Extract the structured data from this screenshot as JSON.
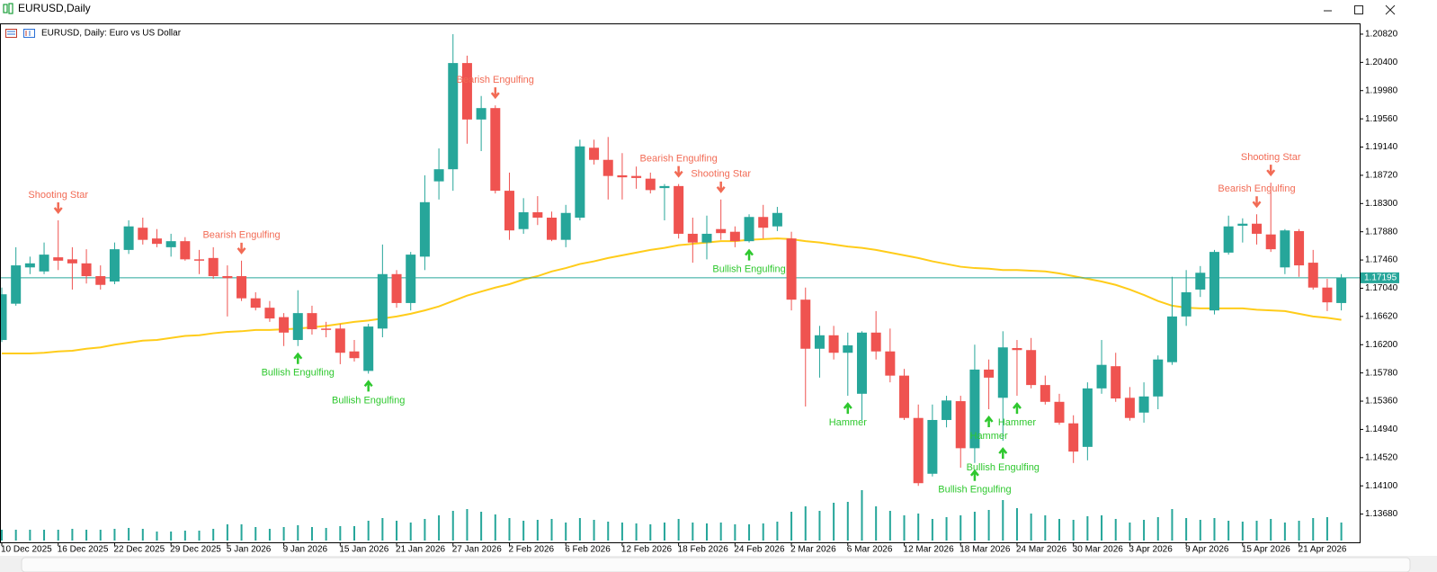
{
  "window": {
    "title": "EURUSD,Daily"
  },
  "chart_data": {
    "type": "candlestick",
    "title": "EURUSD, Daily: Euro vs US Dollar",
    "categories": [
      "10 Dec 2025",
      null,
      null,
      null,
      "16 Dec 2025",
      null,
      null,
      null,
      "22 Dec 2025",
      null,
      null,
      null,
      "29 Dec 2025",
      null,
      null,
      null,
      "5 Jan 2026",
      null,
      null,
      null,
      "9 Jan 2026",
      null,
      null,
      null,
      "15 Jan 2026",
      null,
      null,
      null,
      "21 Jan 2026",
      null,
      null,
      null,
      "27 Jan 2026",
      null,
      null,
      null,
      "2 Feb 2026",
      null,
      null,
      null,
      "6 Feb 2026",
      null,
      null,
      null,
      "12 Feb 2026",
      null,
      null,
      null,
      "18 Feb 2026",
      null,
      null,
      null,
      "24 Feb 2026",
      null,
      null,
      null,
      "2 Mar 2026",
      null,
      null,
      null,
      "6 Mar 2026",
      null,
      null,
      null,
      "12 Mar 2026",
      null,
      null,
      null,
      "18 Mar 2026",
      null,
      null,
      null,
      "24 Mar 2026",
      null,
      null,
      null,
      "30 Mar 2026",
      null,
      null,
      null,
      "3 Apr 2026",
      null,
      null,
      null,
      "9 Apr 2026",
      null,
      null,
      null,
      "15 Apr 2026",
      null,
      null,
      null,
      "21 Apr 2026",
      null,
      null,
      null
    ],
    "open": [
      1.1627,
      1.1681,
      1.1735,
      1.1729,
      1.175,
      1.1747,
      1.1741,
      1.1722,
      1.1714,
      1.1761,
      1.1794,
      1.1778,
      1.1765,
      1.1774,
      1.1747,
      1.1749,
      1.1722,
      1.1722,
      1.1689,
      1.1675,
      1.1661,
      1.1627,
      1.1667,
      1.1644,
      1.1644,
      1.161,
      1.1581,
      1.1644,
      1.1725,
      1.1682,
      1.1751,
      1.1863,
      1.1881,
      1.2039,
      1.1955,
      1.1972,
      1.1849,
      1.1792,
      1.1817,
      1.1809,
      1.1776,
      1.1809,
      1.1913,
      1.1895,
      1.1872,
      1.1871,
      1.1867,
      1.1853,
      1.1856,
      1.1785,
      1.1772,
      1.1792,
      1.1788,
      1.1774,
      1.181,
      1.1796,
      1.1778,
      1.1687,
      1.1614,
      1.1634,
      1.1608,
      1.1547,
      1.1638,
      1.161,
      1.1574,
      1.1511,
      1.1428,
      1.1508,
      1.1536,
      1.1466,
      1.1583,
      1.1541,
      1.1615,
      1.1612,
      1.156,
      1.1535,
      1.1503,
      1.1468,
      1.1555,
      1.1588,
      1.1541,
      1.1519,
      1.1543,
      1.1594,
      1.1662,
      1.1702,
      1.1671,
      1.1757,
      1.1797,
      1.18,
      1.1784,
      1.1735,
      1.1789,
      1.1742,
      1.1705,
      1.1682
    ],
    "high": [
      1.1705,
      1.1765,
      1.1751,
      1.1772,
      1.1805,
      1.1765,
      1.1762,
      1.1738,
      1.1772,
      1.1805,
      1.1809,
      1.1792,
      1.1785,
      1.178,
      1.1761,
      1.1765,
      1.1738,
      1.1745,
      1.1698,
      1.1685,
      1.1667,
      1.1701,
      1.1678,
      1.1654,
      1.1651,
      1.1627,
      1.1651,
      1.1769,
      1.1731,
      1.1758,
      1.1872,
      1.1912,
      1.2082,
      1.205,
      1.199,
      1.1976,
      1.1876,
      1.1838,
      1.1841,
      1.1818,
      1.1828,
      1.1925,
      1.1925,
      1.1929,
      1.1905,
      1.1885,
      1.1876,
      1.1859,
      1.1859,
      1.1809,
      1.1812,
      1.1836,
      1.1796,
      1.1814,
      1.1828,
      1.1825,
      1.1788,
      1.1705,
      1.1648,
      1.1648,
      1.1638,
      1.164,
      1.167,
      1.1644,
      1.1584,
      1.1531,
      1.1531,
      1.1544,
      1.1544,
      1.162,
      1.1598,
      1.164,
      1.1627,
      1.163,
      1.1574,
      1.1547,
      1.1515,
      1.1564,
      1.1627,
      1.1608,
      1.1557,
      1.1564,
      1.1604,
      1.1721,
      1.1731,
      1.1737,
      1.1761,
      1.1812,
      1.1808,
      1.1814,
      1.1861,
      1.1792,
      1.1792,
      1.1761,
      1.1718,
      1.1725
    ],
    "low": [
      1.1624,
      1.1678,
      1.1725,
      1.1725,
      1.1731,
      1.1702,
      1.1711,
      1.1702,
      1.171,
      1.1755,
      1.1769,
      1.1765,
      1.1751,
      1.1745,
      1.1725,
      1.1718,
      1.1662,
      1.1685,
      1.1671,
      1.1654,
      1.1618,
      1.1618,
      1.1635,
      1.1631,
      1.1591,
      1.1595,
      1.1577,
      1.1631,
      1.1675,
      1.1671,
      1.1731,
      1.1836,
      1.1849,
      1.1919,
      1.1908,
      1.1845,
      1.1776,
      1.1785,
      1.1798,
      1.1774,
      1.1765,
      1.1805,
      1.1888,
      1.1836,
      1.1836,
      1.1852,
      1.1845,
      1.1805,
      1.1778,
      1.1742,
      1.1747,
      1.1776,
      1.1765,
      1.1772,
      1.1778,
      1.1789,
      1.1671,
      1.1528,
      1.1571,
      1.1598,
      1.1544,
      1.1508,
      1.1598,
      1.1564,
      1.1508,
      1.141,
      1.1424,
      1.1497,
      1.1437,
      1.1444,
      1.1524,
      1.1477,
      1.1544,
      1.1555,
      1.1531,
      1.1501,
      1.1444,
      1.1448,
      1.1547,
      1.1535,
      1.1507,
      1.1504,
      1.1524,
      1.159,
      1.1648,
      1.1691,
      1.1665,
      1.1754,
      1.1772,
      1.1769,
      1.1758,
      1.1725,
      1.1721,
      1.1702,
      1.167,
      1.1671
    ],
    "close": [
      1.1695,
      1.1738,
      1.1741,
      1.1754,
      1.1745,
      1.1741,
      1.1722,
      1.1709,
      1.1762,
      1.1796,
      1.1776,
      1.177,
      1.1774,
      1.1747,
      1.1746,
      1.1722,
      1.1719,
      1.1689,
      1.1675,
      1.1659,
      1.1638,
      1.1667,
      1.1643,
      1.1642,
      1.1608,
      1.16,
      1.1647,
      1.1725,
      1.1682,
      1.1754,
      1.1832,
      1.1881,
      1.2039,
      1.1955,
      1.1972,
      1.1849,
      1.179,
      1.1817,
      1.1809,
      1.1776,
      1.1816,
      1.1915,
      1.1895,
      1.1871,
      1.1869,
      1.1868,
      1.185,
      1.1856,
      1.1785,
      1.1772,
      1.1785,
      1.1786,
      1.1774,
      1.181,
      1.1794,
      1.1816,
      1.1687,
      1.1614,
      1.1634,
      1.1608,
      1.1619,
      1.1638,
      1.161,
      1.1574,
      1.1511,
      1.1414,
      1.1508,
      1.1537,
      1.1466,
      1.1583,
      1.1571,
      1.1616,
      1.1612,
      1.156,
      1.1535,
      1.1504,
      1.1461,
      1.1555,
      1.159,
      1.154,
      1.1511,
      1.1543,
      1.1598,
      1.1662,
      1.1698,
      1.1727,
      1.1758,
      1.1796,
      1.18,
      1.1785,
      1.1762,
      1.179,
      1.1738,
      1.1705,
      1.1683,
      1.172
    ],
    "up_color": "#26a69a",
    "down_color": "#ef5350",
    "volume": [
      12,
      12,
      12,
      12,
      12,
      13,
      12,
      12,
      13,
      14,
      13,
      10,
      10,
      11,
      11,
      13,
      18,
      18,
      15,
      13,
      15,
      17,
      15,
      14,
      16,
      16,
      22,
      25,
      22,
      20,
      24,
      28,
      33,
      35,
      32,
      29,
      25,
      22,
      23,
      24,
      20,
      25,
      23,
      21,
      20,
      19,
      18,
      20,
      24,
      20,
      19,
      20,
      18,
      18,
      19,
      21,
      32,
      38,
      33,
      42,
      43,
      56,
      38,
      33,
      28,
      30,
      24,
      26,
      28,
      32,
      34,
      45,
      36,
      30,
      28,
      24,
      23,
      27,
      28,
      24,
      20,
      23,
      26,
      35,
      25,
      23,
      25,
      22,
      21,
      22,
      24,
      20,
      22,
      25,
      26,
      20
    ],
    "volume_ylim": [
      0,
      60
    ],
    "volume_color": "#26a69a",
    "moving_average": {
      "color": "#ffcc1a",
      "values": [
        1.1607,
        1.1607,
        1.1607,
        1.1608,
        1.161,
        1.1611,
        1.1614,
        1.1616,
        1.162,
        1.1623,
        1.1626,
        1.1627,
        1.163,
        1.1633,
        1.1634,
        1.1637,
        1.1639,
        1.164,
        1.1642,
        1.1642,
        1.1643,
        1.1644,
        1.1646,
        1.1648,
        1.1651,
        1.1654,
        1.1656,
        1.1659,
        1.1662,
        1.1666,
        1.1671,
        1.1677,
        1.1685,
        1.1693,
        1.1699,
        1.1705,
        1.171,
        1.1717,
        1.1722,
        1.1729,
        1.1734,
        1.174,
        1.1744,
        1.1749,
        1.1753,
        1.1757,
        1.1761,
        1.1764,
        1.1768,
        1.177,
        1.1772,
        1.1774,
        1.1774,
        1.1776,
        1.1777,
        1.1778,
        1.1777,
        1.1774,
        1.1772,
        1.1769,
        1.1766,
        1.1764,
        1.1761,
        1.1757,
        1.1753,
        1.1749,
        1.1744,
        1.174,
        1.1736,
        1.1734,
        1.1733,
        1.1731,
        1.1731,
        1.173,
        1.1729,
        1.1726,
        1.1722,
        1.1718,
        1.1714,
        1.1709,
        1.1702,
        1.1694,
        1.1685,
        1.1678,
        1.1675,
        1.1674,
        1.1674,
        1.1674,
        1.1674,
        1.1672,
        1.1671,
        1.167,
        1.1666,
        1.1662,
        1.166,
        1.1657
      ]
    },
    "last_price": 1.17195,
    "last_price_color": "#26a69a",
    "bearish_patterns": [
      null,
      null,
      null,
      null,
      "Shooting Star",
      null,
      null,
      null,
      null,
      null,
      null,
      null,
      null,
      null,
      null,
      null,
      null,
      "Bearish Engulfing",
      null,
      null,
      null,
      null,
      null,
      null,
      null,
      null,
      null,
      null,
      null,
      null,
      null,
      null,
      null,
      null,
      null,
      "Bearish Engulfing",
      null,
      null,
      null,
      null,
      null,
      null,
      null,
      null,
      null,
      null,
      null,
      null,
      "Bearish Engulfing",
      null,
      null,
      "Shooting Star",
      null,
      null,
      null,
      null,
      null,
      null,
      null,
      null,
      null,
      null,
      null,
      null,
      null,
      null,
      null,
      null,
      null,
      null,
      null,
      null,
      null,
      null,
      null,
      null,
      null,
      null,
      null,
      null,
      null,
      null,
      null,
      null,
      null,
      null,
      null,
      null,
      null,
      "Bearish Engulfing",
      "Shooting Star",
      null,
      null,
      null,
      null,
      null
    ],
    "bullish_patterns": [
      null,
      null,
      null,
      null,
      null,
      null,
      null,
      null,
      null,
      null,
      null,
      null,
      null,
      null,
      null,
      null,
      null,
      null,
      null,
      null,
      null,
      "Bullish Engulfing",
      null,
      null,
      null,
      null,
      "Bullish Engulfing",
      null,
      null,
      null,
      null,
      null,
      null,
      null,
      null,
      null,
      null,
      null,
      null,
      null,
      null,
      null,
      null,
      null,
      null,
      null,
      null,
      null,
      null,
      null,
      null,
      null,
      null,
      "Bullish Engulfing",
      null,
      null,
      null,
      null,
      null,
      null,
      "Hammer",
      null,
      null,
      null,
      null,
      null,
      null,
      null,
      null,
      "Bullish Engulfing",
      "Hammer",
      "Bullish Engulfing",
      "Hammer",
      null,
      null,
      null,
      null,
      null,
      null,
      null,
      null,
      null,
      null,
      null,
      null,
      null,
      null,
      null,
      null,
      null,
      null,
      null,
      null,
      null,
      null,
      null
    ],
    "bearish_color": "#f26b55",
    "bullish_color": "#2ec82e",
    "ylim": [
      1.1326,
      1.2098
    ],
    "yticks": [
      {
        "value": 1.2082,
        "label": "1.20820"
      },
      {
        "value": 1.204,
        "label": "1.20400"
      },
      {
        "value": 1.1998,
        "label": "1.19980"
      },
      {
        "value": 1.1956,
        "label": "1.19560"
      },
      {
        "value": 1.1914,
        "label": "1.19140"
      },
      {
        "value": 1.1872,
        "label": "1.18720"
      },
      {
        "value": 1.183,
        "label": "1.18300"
      },
      {
        "value": 1.1788,
        "label": "1.17880"
      },
      {
        "value": 1.1746,
        "label": "1.17460"
      },
      {
        "value": 1.1704,
        "label": "1.17040"
      },
      {
        "value": 1.1662,
        "label": "1.16620"
      },
      {
        "value": 1.162,
        "label": "1.16200"
      },
      {
        "value": 1.1578,
        "label": "1.15780"
      },
      {
        "value": 1.1536,
        "label": "1.15360"
      },
      {
        "value": 1.1494,
        "label": "1.14940"
      },
      {
        "value": 1.1452,
        "label": "1.14520"
      },
      {
        "value": 1.141,
        "label": "1.14100"
      },
      {
        "value": 1.1368,
        "label": "1.13680"
      }
    ]
  }
}
